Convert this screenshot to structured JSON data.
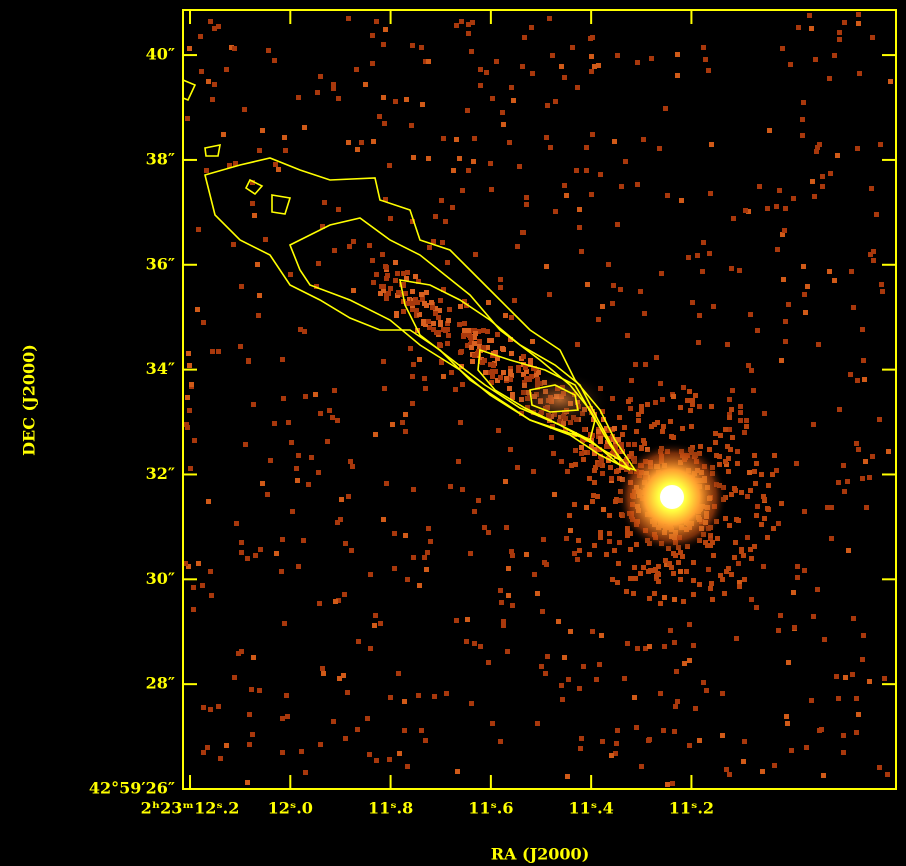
{
  "chart_data": {
    "type": "image",
    "xlabel": "RA (J2000)",
    "ylabel": "DEC (J2000)",
    "xlim": [
      12.214,
      10.792
    ],
    "ylim": [
      26,
      40.86
    ],
    "xticks": [
      {
        "value": 12.2,
        "label": "2ʰ23ᵐ12ˢ.2"
      },
      {
        "value": 12.0,
        "label": "12ˢ.0"
      },
      {
        "value": 11.8,
        "label": "11ˢ.8"
      },
      {
        "value": 11.6,
        "label": "11ˢ.6"
      },
      {
        "value": 11.4,
        "label": "11ˢ.4"
      },
      {
        "value": 11.2,
        "label": "11ˢ.2"
      }
    ],
    "yticks": [
      {
        "value": 26,
        "label": "42°59′26″"
      },
      {
        "value": 28,
        "label": "28″"
      },
      {
        "value": 30,
        "label": "30″"
      },
      {
        "value": 32,
        "label": "32″"
      },
      {
        "value": 34,
        "label": "34″"
      },
      {
        "value": 36,
        "label": "36″"
      },
      {
        "value": 38,
        "label": "38″"
      },
      {
        "value": 40,
        "label": "40″"
      }
    ],
    "color": "#ffff00"
  }
}
